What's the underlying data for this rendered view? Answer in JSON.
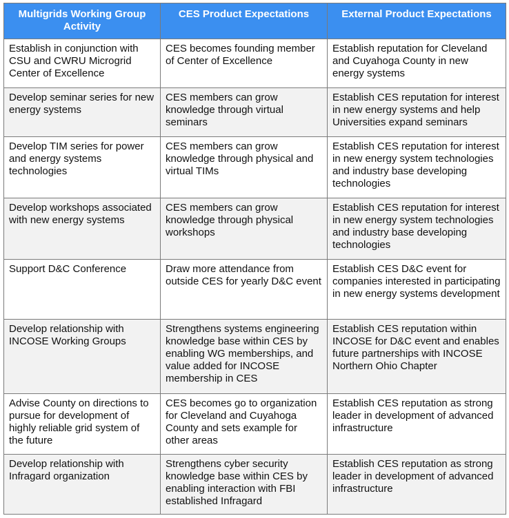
{
  "table": {
    "headers": [
      "Multigrids Working Group Activity",
      "CES Product Expectations",
      "External Product Expectations"
    ],
    "rows": [
      [
        "Establish in conjunction with CSU and CWRU  Microgrid Center of Excellence",
        "CES becomes founding member of Center of Excellence",
        "Establish reputation for Cleveland and Cuyahoga County in new energy systems"
      ],
      [
        "Develop seminar series for new energy systems",
        "CES members can grow knowledge through virtual seminars",
        "Establish CES reputation for interest in new energy systems and help Universities expand seminars"
      ],
      [
        "Develop TIM series for power and energy systems technologies",
        "CES members can grow knowledge through physical and virtual TIMs",
        "Establish CES reputation for interest in new energy system technologies and industry base developing technologies"
      ],
      [
        "Develop workshops associated with new energy systems",
        "CES members can grow knowledge through physical workshops",
        "Establish CES reputation for interest in new energy system technologies and industry base developing technologies"
      ],
      [
        "Support D&C Conference",
        "Draw more attendance from outside CES for yearly D&C event",
        "Establish CES D&C event for companies interested in participating in new energy systems development"
      ],
      [
        "Develop relationship with INCOSE Working Groups",
        "Strengthens systems engineering knowledge base within CES by enabling WG memberships, and value added for INCOSE membership in CES",
        "Establish CES reputation within INCOSE for D&C event and enables future partnerships with INCOSE Northern Ohio Chapter"
      ],
      [
        "Advise County on directions to pursue for development of highly reliable grid system of the future",
        "CES becomes go to organization for Cleveland and Cuyahoga County and sets example for other areas",
        "Establish CES reputation as strong leader in development of advanced infrastructure"
      ],
      [
        "Develop relationship with Infragard organization",
        "Strengthens cyber security knowledge base within CES by enabling interaction with FBI established Infragard",
        "Establish CES reputation as strong leader in development of advanced infrastructure"
      ]
    ]
  },
  "colors": {
    "header_bg": "#3b8ff0",
    "header_text": "#ffffff",
    "alt_row_bg": "#f2f2f2",
    "border": "#7a7a7a"
  }
}
